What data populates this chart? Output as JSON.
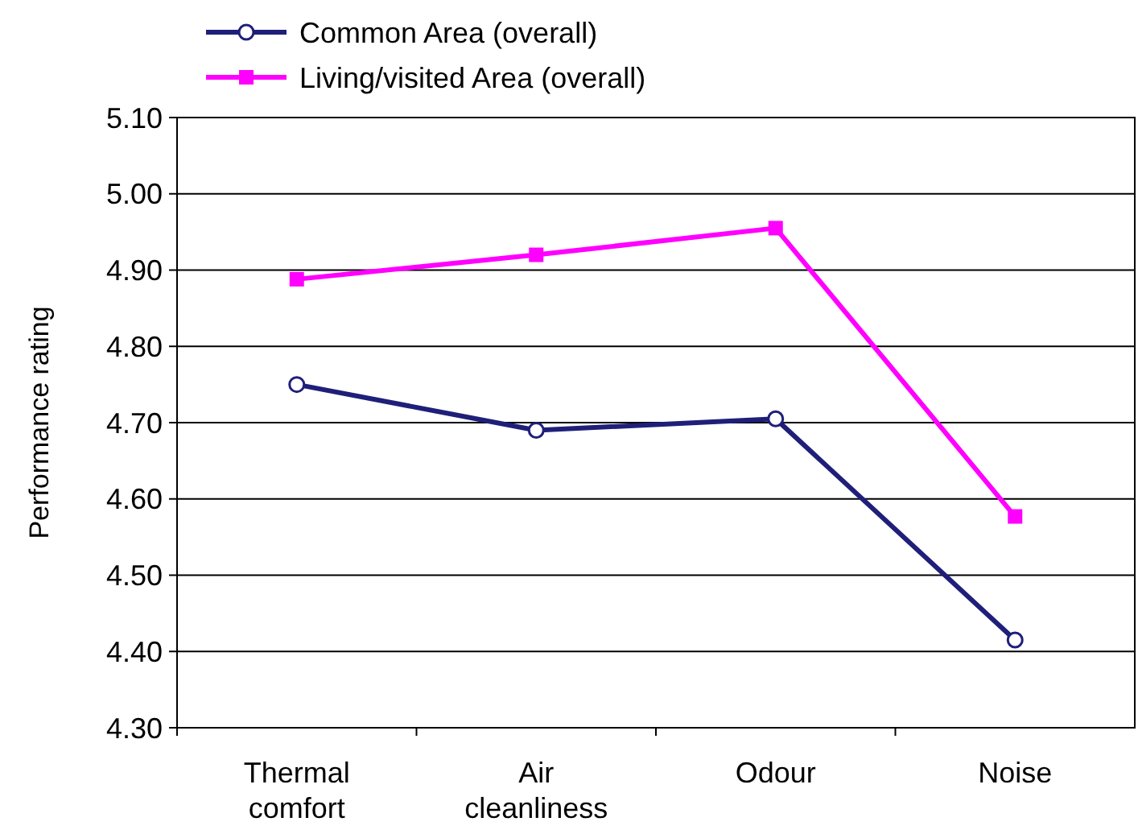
{
  "chart_data": {
    "type": "line",
    "ylabel": "Performance rating",
    "categories": [
      "Thermal comfort",
      "Air cleanliness",
      "Odour",
      "Noise"
    ],
    "series": [
      {
        "name": "Common Area (overall)",
        "color": "#1f1f7a",
        "values": [
          4.75,
          4.69,
          4.705,
          4.415
        ],
        "marker": "circle"
      },
      {
        "name": "Living/visited Area (overall)",
        "color": "#ff00ff",
        "values": [
          4.888,
          4.92,
          4.955,
          4.577
        ],
        "marker": "square"
      }
    ],
    "ylim": [
      4.3,
      5.1
    ],
    "yticks": [
      {
        "value": 4.3,
        "label": "4.30"
      },
      {
        "value": 4.4,
        "label": "4.40"
      },
      {
        "value": 4.5,
        "label": "4.50"
      },
      {
        "value": 4.6,
        "label": "4.60"
      },
      {
        "value": 4.7,
        "label": "4.70"
      },
      {
        "value": 4.8,
        "label": "4.80"
      },
      {
        "value": 4.9,
        "label": "4.90"
      },
      {
        "value": 5.0,
        "label": "5.00"
      },
      {
        "value": 5.1,
        "label": "5.10"
      }
    ],
    "grid": "y",
    "legend": "top left",
    "line_style": "solid"
  }
}
